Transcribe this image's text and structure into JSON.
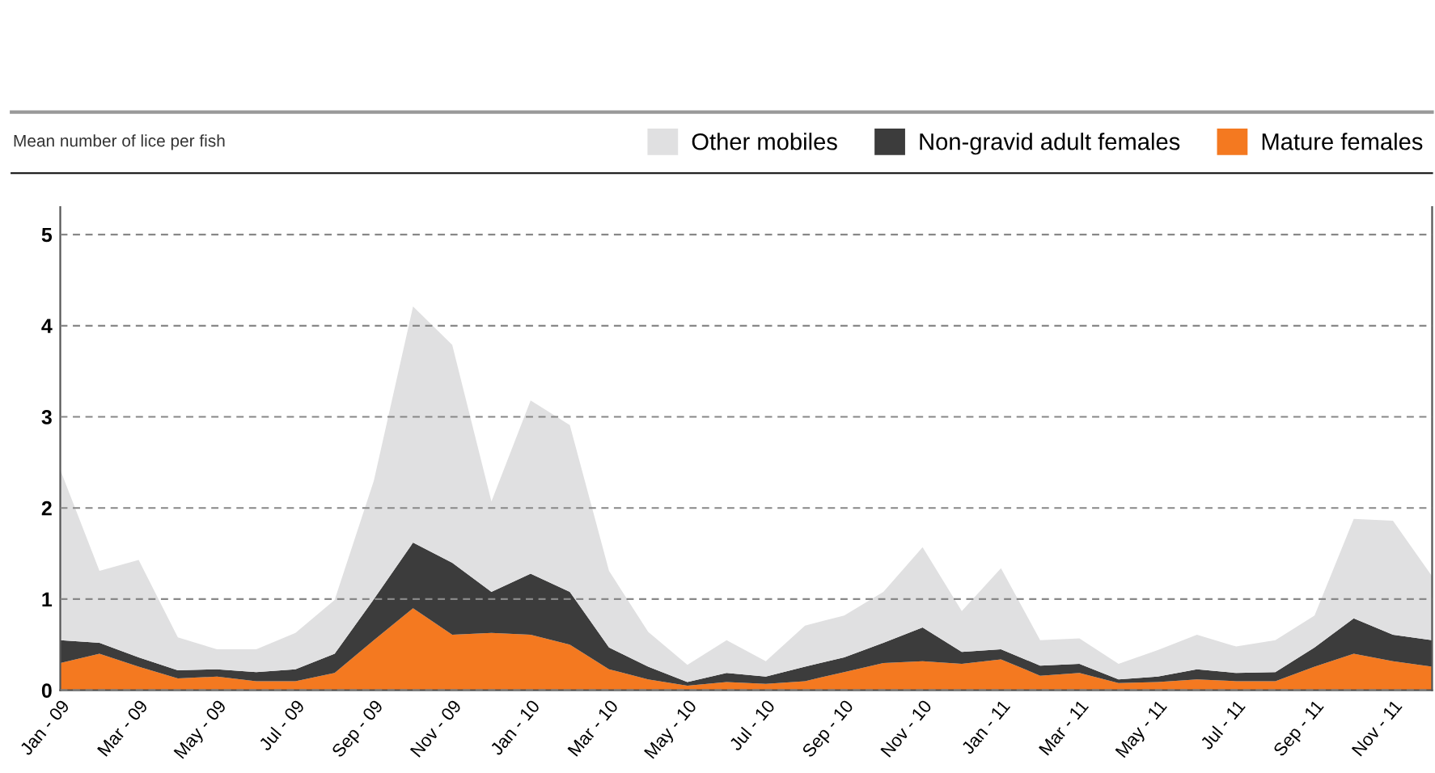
{
  "chart_data": {
    "type": "area",
    "stacked": true,
    "ylabel": "Mean number of lice per fish",
    "categories": [
      "Jan - 09",
      null,
      "Mar - 09",
      null,
      "May - 09",
      null,
      "Jul - 09",
      null,
      "Sep - 09",
      null,
      "Nov - 09",
      null,
      "Jan - 10",
      null,
      "Mar - 10",
      null,
      "May - 10",
      null,
      "Jul - 10",
      null,
      "Sep - 10",
      null,
      "Nov - 10",
      null,
      "Jan - 11",
      null,
      "Mar - 11",
      null,
      "May - 11",
      null,
      "Jul - 11",
      null,
      "Sep - 11",
      null,
      "Nov - 11",
      null
    ],
    "series": [
      {
        "name": "Mature females",
        "color": "#f47920",
        "values": [
          0.3,
          0.4,
          0.26,
          0.13,
          0.15,
          0.1,
          0.1,
          0.19,
          0.55,
          0.9,
          0.61,
          0.63,
          0.61,
          0.5,
          0.23,
          0.12,
          0.05,
          0.09,
          0.07,
          0.1,
          0.2,
          0.3,
          0.32,
          0.29,
          0.34,
          0.16,
          0.19,
          0.08,
          0.09,
          0.12,
          0.1,
          0.1,
          0.26,
          0.4,
          0.32,
          0.26
        ]
      },
      {
        "name": "Non-gravid adult females",
        "color": "#3c3c3c",
        "values": [
          0.25,
          0.12,
          0.1,
          0.09,
          0.08,
          0.1,
          0.13,
          0.21,
          0.45,
          0.72,
          0.79,
          0.45,
          0.67,
          0.58,
          0.24,
          0.14,
          0.04,
          0.1,
          0.08,
          0.16,
          0.16,
          0.22,
          0.37,
          0.13,
          0.11,
          0.11,
          0.1,
          0.04,
          0.06,
          0.11,
          0.09,
          0.1,
          0.21,
          0.39,
          0.29,
          0.29
        ]
      },
      {
        "name": "Other mobiles",
        "color": "#e0e0e1",
        "values": [
          1.87,
          0.79,
          1.07,
          0.36,
          0.22,
          0.25,
          0.4,
          0.59,
          1.3,
          2.59,
          2.39,
          0.99,
          1.9,
          1.83,
          0.84,
          0.38,
          0.19,
          0.36,
          0.17,
          0.45,
          0.46,
          0.56,
          0.88,
          0.45,
          0.89,
          0.28,
          0.28,
          0.17,
          0.29,
          0.38,
          0.29,
          0.35,
          0.35,
          1.09,
          1.25,
          0.7
        ]
      }
    ],
    "ylim": [
      0,
      5.3
    ],
    "yticks": [
      0,
      1,
      2,
      3,
      4,
      5
    ],
    "grid": "y",
    "legend": "top right"
  }
}
